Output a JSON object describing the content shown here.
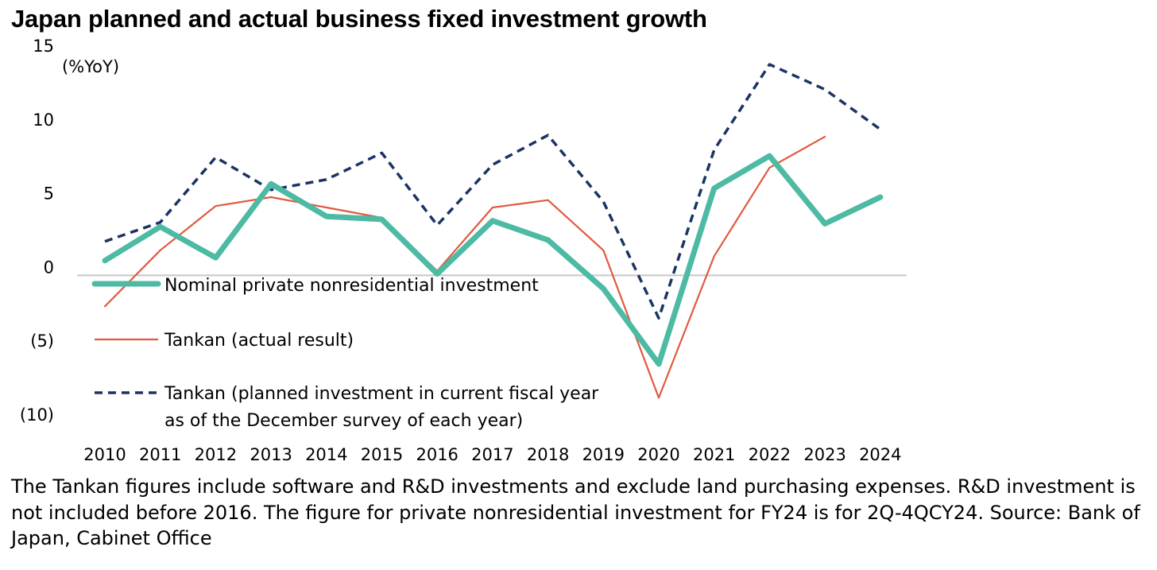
{
  "chart_data": {
    "type": "line",
    "title": "Japan planned and actual business fixed investment growth",
    "ylabel": "(%YoY)",
    "ylim": [
      -10,
      15
    ],
    "y_ticks": [
      15,
      10,
      5,
      0,
      -5,
      -10
    ],
    "y_tick_labels": [
      "15",
      "10",
      "5",
      "0",
      "(5)",
      "(10)"
    ],
    "categories": [
      "2010",
      "2011",
      "2012",
      "2013",
      "2014",
      "2015",
      "2016",
      "2017",
      "2018",
      "2019",
      "2020",
      "2021",
      "2022",
      "2023",
      "2024"
    ],
    "legend_position": "left-center",
    "series": [
      {
        "name": "Nominal private nonresidential investment",
        "color": "#4dbaa3",
        "style": "solid-thick",
        "values": [
          1.0,
          3.3,
          1.2,
          6.2,
          4.0,
          3.8,
          0.1,
          3.7,
          2.4,
          -0.9,
          -6.0,
          5.9,
          8.1,
          3.5,
          5.3
        ]
      },
      {
        "name": "Tankan (actual result)",
        "color": "#e05a3f",
        "style": "solid-thin",
        "values": [
          -2.1,
          1.7,
          4.7,
          5.3,
          4.6,
          3.9,
          0.3,
          4.6,
          5.1,
          1.7,
          -8.3,
          1.3,
          7.3,
          9.4,
          null
        ]
      },
      {
        "name": "Tankan (planned investment in current fiscal year as of the December survey of each year)",
        "name_line1": "Tankan (planned investment in current fiscal year",
        "name_line2": "as of the December survey of each year)",
        "color": "#1b3464",
        "style": "dashed",
        "values": [
          2.3,
          3.6,
          8.0,
          5.8,
          6.5,
          8.3,
          3.4,
          7.5,
          9.5,
          5.0,
          -2.9,
          8.5,
          14.3,
          12.6,
          9.9
        ]
      }
    ]
  },
  "footnote": "The Tankan figures include software and R&D investments and exclude land purchasing expenses. R&D investment is not included before 2016. The figure for private nonresidential investment for FY24 is for 2Q-4QCY24. Source: Bank of Japan, Cabinet Office"
}
